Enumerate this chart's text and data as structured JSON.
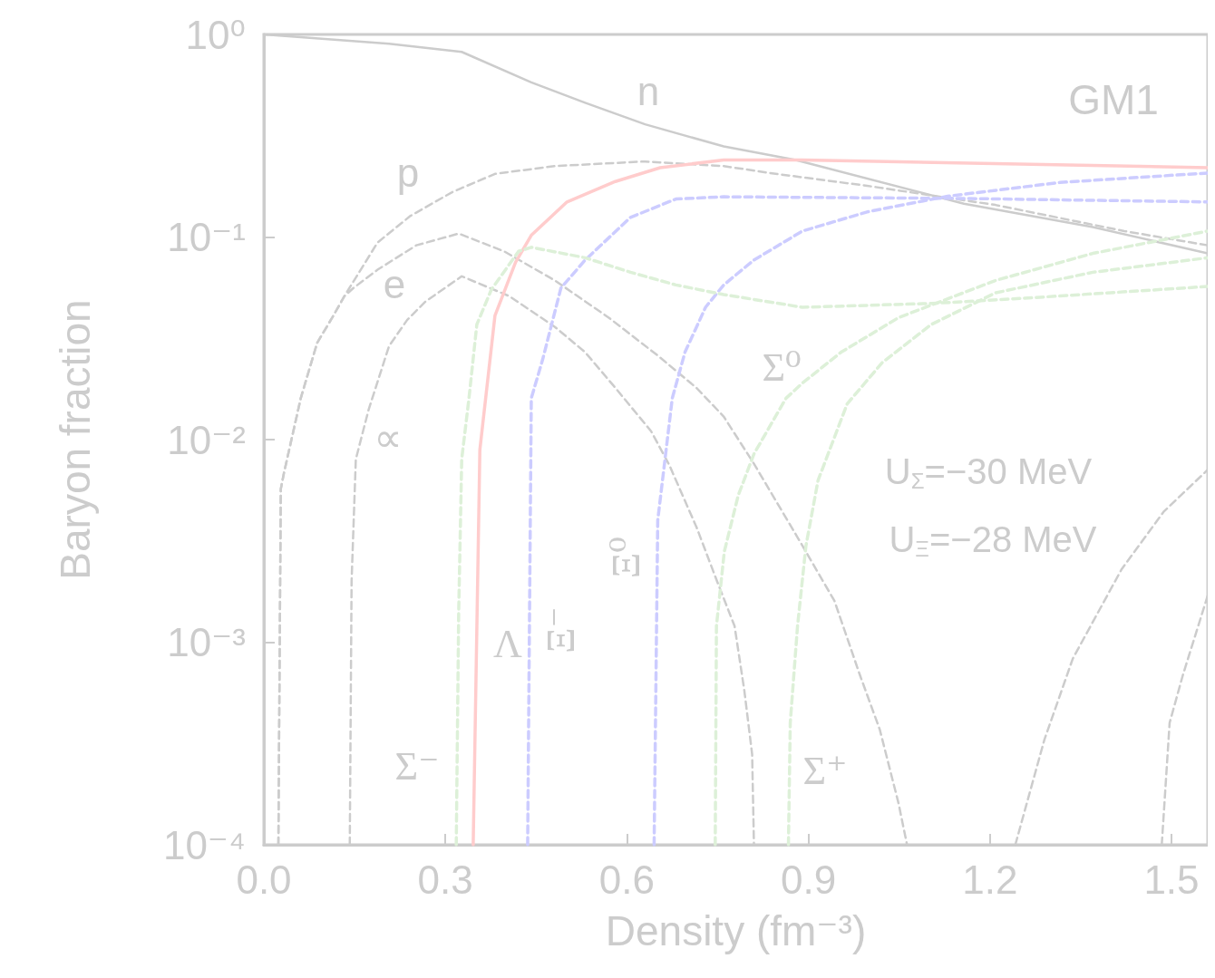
{
  "chart_data": {
    "type": "line",
    "xlabel": "Density (fm⁻³)",
    "ylabel": "Baryon fraction",
    "log": "y",
    "grid": false,
    "legend": false,
    "marker": "none",
    "xlim": [
      0,
      1.56
    ],
    "xticks": [
      {
        "value": 0,
        "label": "0.0"
      },
      {
        "value": 0.3,
        "label": "0.3"
      },
      {
        "value": 0.6,
        "label": "0.6"
      },
      {
        "value": 0.9,
        "label": "0.9"
      },
      {
        "value": 1.2,
        "label": "1.2"
      },
      {
        "value": 1.5,
        "label": "1.5"
      }
    ],
    "ylim": [
      0.0001,
      1
    ],
    "yticks": [
      {
        "value": 0.0001,
        "label": "10⁻⁴"
      },
      {
        "value": 0.001,
        "label": "10⁻³"
      },
      {
        "value": 0.01,
        "label": "10⁻²"
      },
      {
        "value": 0.1,
        "label": "10⁻¹"
      },
      {
        "value": 1,
        "label": "10⁰"
      }
    ],
    "series": [
      {
        "name": "n",
        "color": "#cccccc",
        "line_style": "solid",
        "x": [
          0,
          0.207,
          0.327,
          0.442,
          0.531,
          0.63,
          0.76,
          0.879,
          1.157,
          1.37,
          1.56
        ],
        "values": [
          1,
          0.9,
          0.82,
          0.58,
          0.46,
          0.36,
          0.28,
          0.24,
          0.146,
          0.112,
          0.083
        ]
      },
      {
        "name": "p",
        "color": "#cccccc",
        "line_style": "dashed",
        "x": [
          0.024,
          0.028,
          0.033,
          0.061,
          0.088,
          0.113,
          0.133,
          0.152,
          0.188,
          0.242,
          0.312,
          0.382,
          0.481,
          0.63,
          0.76,
          0.836,
          0.997,
          1.209,
          1.422,
          1.56
        ],
        "values": [
          0.0001,
          0.0057,
          0.0068,
          0.016,
          0.03,
          0.04,
          0.051,
          0.063,
          0.094,
          0.127,
          0.167,
          0.205,
          0.224,
          0.236,
          0.224,
          0.207,
          0.179,
          0.144,
          0.107,
          0.091
        ]
      },
      {
        "name": "e",
        "color": "#cccccc",
        "line_style": "dashed",
        "x": [
          0.024,
          0.028,
          0.033,
          0.061,
          0.088,
          0.113,
          0.133,
          0.148,
          0.188,
          0.252,
          0.322,
          0.397,
          0.481,
          0.57,
          0.651,
          0.715,
          0.76,
          0.81,
          0.89,
          0.943,
          0.985,
          1.018,
          1.049,
          1.063
        ],
        "values": [
          0.0001,
          0.0057,
          0.0068,
          0.016,
          0.03,
          0.04,
          0.051,
          0.056,
          0.069,
          0.091,
          0.104,
          0.085,
          0.061,
          0.04,
          0.026,
          0.018,
          0.013,
          0.0076,
          0.003,
          0.0016,
          0.00069,
          0.00037,
          0.00016,
          0.0001
        ]
      },
      {
        "name": "∝",
        "color": "#cccccc",
        "line_style": "dashed",
        "x": [
          0.142,
          0.145,
          0.152,
          0.173,
          0.207,
          0.237,
          0.267,
          0.327,
          0.406,
          0.481,
          0.531,
          0.581,
          0.64,
          0.67,
          0.715,
          0.749,
          0.778,
          0.794,
          0.807,
          0.81
        ],
        "values": [
          0.0001,
          0.002,
          0.008,
          0.014,
          0.029,
          0.039,
          0.048,
          0.064,
          0.051,
          0.036,
          0.027,
          0.018,
          0.011,
          0.0075,
          0.0037,
          0.002,
          0.0012,
          0.00058,
          0.00028,
          0.0001
        ]
      },
      {
        "name": "Λ",
        "color": "#ffcccc",
        "line_style": "solid",
        "x": [
          0.346,
          0.357,
          0.382,
          0.416,
          0.442,
          0.501,
          0.581,
          0.655,
          0.76,
          0.89,
          1.56
        ],
        "values": [
          0.0001,
          0.0089,
          0.041,
          0.075,
          0.102,
          0.149,
          0.188,
          0.22,
          0.24,
          0.24,
          0.22
        ]
      },
      {
        "name": "Ξ⁻",
        "color": "#ccccff",
        "line_style": "dashed",
        "x": [
          0.436,
          0.442,
          0.461,
          0.491,
          0.531,
          0.606,
          0.681,
          0.76,
          1.157,
          1.56
        ],
        "values": [
          0.0001,
          0.016,
          0.025,
          0.056,
          0.077,
          0.125,
          0.154,
          0.158,
          0.155,
          0.149
        ]
      },
      {
        "name": "Ξ⁰",
        "color": "#ccccff",
        "line_style": "dashed",
        "x": [
          0.645,
          0.651,
          0.675,
          0.696,
          0.73,
          0.76,
          0.81,
          0.89,
          0.997,
          1.13,
          1.316,
          1.56
        ],
        "values": [
          0.0001,
          0.004,
          0.016,
          0.027,
          0.045,
          0.058,
          0.077,
          0.107,
          0.133,
          0.159,
          0.186,
          0.207
        ]
      },
      {
        "name": "Σ⁻",
        "color": "#ddf0d8",
        "line_style": "dashed",
        "x": [
          0.318,
          0.322,
          0.327,
          0.339,
          0.352,
          0.376,
          0.421,
          0.442,
          0.531,
          0.606,
          0.681,
          0.76,
          0.89,
          1.103,
          1.263,
          1.56
        ],
        "values": [
          0.0001,
          0.0014,
          0.008,
          0.016,
          0.037,
          0.055,
          0.085,
          0.089,
          0.079,
          0.067,
          0.058,
          0.052,
          0.045,
          0.047,
          0.05,
          0.057
        ]
      },
      {
        "name": "Σ⁰",
        "color": "#ddf0d8",
        "line_style": "dashed",
        "x": [
          0.746,
          0.748,
          0.761,
          0.784,
          0.81,
          0.863,
          0.89,
          0.954,
          1.049,
          1.209,
          1.37,
          1.56
        ],
        "values": [
          0.0001,
          0.0012,
          0.0028,
          0.0053,
          0.0085,
          0.016,
          0.019,
          0.027,
          0.04,
          0.061,
          0.083,
          0.107
        ]
      },
      {
        "name": "Σ⁺",
        "color": "#ddf0d8",
        "line_style": "dashed",
        "x": [
          0.867,
          0.87,
          0.882,
          0.896,
          0.916,
          0.964,
          1.022,
          1.103,
          1.209,
          1.37,
          1.56
        ],
        "values": [
          0.0001,
          0.0004,
          0.0012,
          0.003,
          0.0063,
          0.015,
          0.024,
          0.037,
          0.053,
          0.067,
          0.079
        ]
      },
      {
        "color": "#cccccc",
        "line_style": "dashed",
        "x": [
          1.242,
          1.29,
          1.337,
          1.418,
          1.487,
          1.56
        ],
        "values": [
          0.0001,
          0.00033,
          0.00083,
          0.0023,
          0.0044,
          0.0071
        ]
      },
      {
        "color": "#cccccc",
        "line_style": "dashed",
        "x": [
          1.484,
          1.497,
          1.519,
          1.56
        ],
        "values": [
          0.0001,
          0.0004,
          0.00069,
          0.0017
        ]
      }
    ],
    "annotations": [
      "GM1",
      "U$_{Σ}$=−30 MeV",
      "U$_{Ξ}$=−28 MeV"
    ]
  }
}
